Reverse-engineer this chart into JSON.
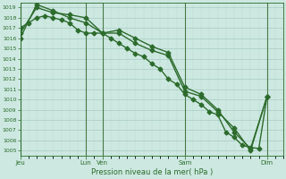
{
  "xlabel": "Pression niveau de la mer( hPa )",
  "bg_color": "#cce8e0",
  "line_color": "#2d6b2d",
  "vline_color": "#4a7a4a",
  "ylim": [
    1004.5,
    1019.5
  ],
  "yticks": [
    1005,
    1006,
    1007,
    1008,
    1009,
    1010,
    1011,
    1012,
    1013,
    1014,
    1015,
    1016,
    1017,
    1018,
    1019
  ],
  "xlim": [
    0,
    96
  ],
  "xtick_positions": [
    0,
    24,
    30,
    60,
    90
  ],
  "xtick_labels": [
    "Jeu",
    "Lun",
    "Ven",
    "Sam",
    "Dim"
  ],
  "vline_positions": [
    0,
    24,
    30,
    60,
    90
  ],
  "line1_x": [
    0,
    3,
    6,
    9,
    12,
    15,
    18,
    21,
    24,
    27,
    30,
    33,
    36,
    39,
    42,
    45,
    48,
    51,
    54,
    57,
    60,
    63,
    66,
    69,
    72,
    75,
    78,
    81,
    84,
    87,
    90
  ],
  "line1_y": [
    1017.0,
    1017.5,
    1018.0,
    1018.2,
    1018.0,
    1017.8,
    1017.5,
    1016.8,
    1016.5,
    1016.5,
    1016.5,
    1016.0,
    1015.5,
    1015.0,
    1014.5,
    1014.2,
    1013.5,
    1013.0,
    1012.0,
    1011.5,
    1010.5,
    1010.0,
    1009.5,
    1008.8,
    1008.5,
    1006.8,
    1006.3,
    1005.5,
    1005.3,
    1005.2,
    1010.3
  ],
  "line2_x": [
    0,
    6,
    12,
    18,
    24,
    30,
    36,
    42,
    48,
    54,
    60,
    66,
    72,
    78,
    84,
    90
  ],
  "line2_y": [
    1016.5,
    1019.0,
    1018.5,
    1018.3,
    1018.0,
    1016.5,
    1016.8,
    1016.0,
    1015.2,
    1014.6,
    1011.2,
    1010.5,
    1009.0,
    1006.8,
    1005.2,
    1010.3
  ],
  "line3_x": [
    0,
    6,
    12,
    18,
    24,
    30,
    36,
    42,
    48,
    54,
    60,
    66,
    72,
    78,
    84,
    90
  ],
  "line3_y": [
    1016.0,
    1019.3,
    1018.7,
    1018.0,
    1017.5,
    1016.5,
    1016.5,
    1015.5,
    1014.8,
    1014.3,
    1010.8,
    1010.3,
    1008.8,
    1007.2,
    1005.0,
    1010.3
  ],
  "markersize": 2.5,
  "linewidth": 1.0
}
